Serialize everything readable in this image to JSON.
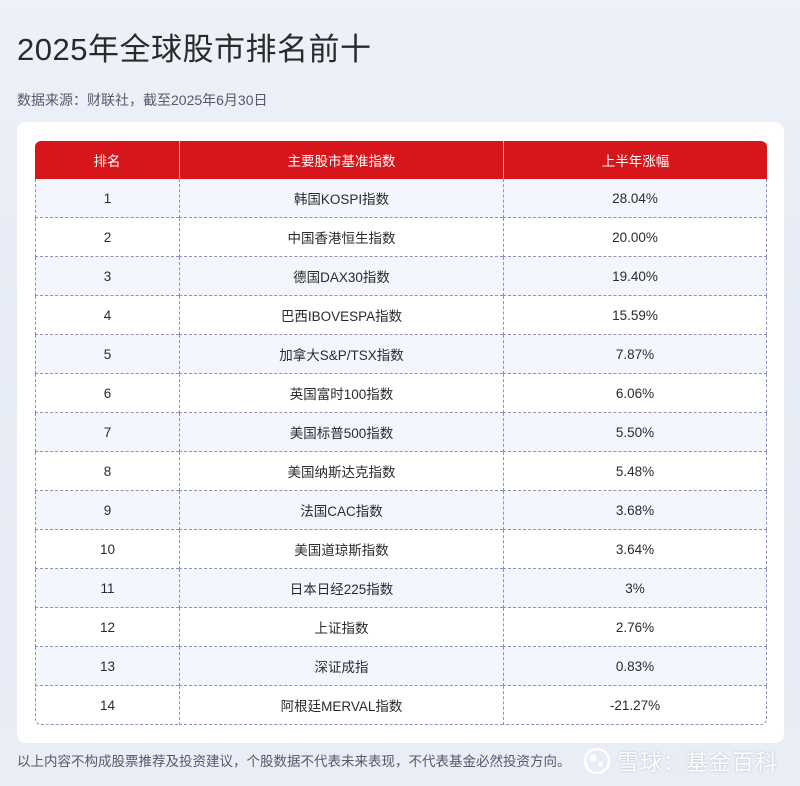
{
  "title": "2025年全球股市排名前十",
  "source": "数据来源：财联社，截至2025年6月30日",
  "table": {
    "headers": [
      "排名",
      "主要股市基准指数",
      "上半年涨幅"
    ],
    "rows": [
      {
        "rank": "1",
        "index": "韩国KOSPI指数",
        "change": "28.04%"
      },
      {
        "rank": "2",
        "index": "中国香港恒生指数",
        "change": "20.00%"
      },
      {
        "rank": "3",
        "index": "德国DAX30指数",
        "change": "19.40%"
      },
      {
        "rank": "4",
        "index": "巴西IBOVESPA指数",
        "change": "15.59%"
      },
      {
        "rank": "5",
        "index": "加拿大S&P/TSX指数",
        "change": "7.87%"
      },
      {
        "rank": "6",
        "index": "英国富时100指数",
        "change": "6.06%"
      },
      {
        "rank": "7",
        "index": "美国标普500指数",
        "change": "5.50%"
      },
      {
        "rank": "8",
        "index": "美国纳斯达克指数",
        "change": "5.48%"
      },
      {
        "rank": "9",
        "index": "法国CAC指数",
        "change": "3.68%"
      },
      {
        "rank": "10",
        "index": "美国道琼斯指数",
        "change": "3.64%"
      },
      {
        "rank": "11",
        "index": "日本日经225指数",
        "change": "3%"
      },
      {
        "rank": "12",
        "index": "上证指数",
        "change": "2.76%"
      },
      {
        "rank": "13",
        "index": "深证成指",
        "change": "0.83%"
      },
      {
        "rank": "14",
        "index": "阿根廷MERVAL指数",
        "change": "-21.27%"
      }
    ]
  },
  "disclaimer": "以上内容不构成股票推荐及投资建议，个股数据不代表未来表现，不代表基金必然投资方向。",
  "brand": {
    "icon": "snowball-logo-icon",
    "text": "雪球：基金百科"
  },
  "colors": {
    "header_red": "#d7161c",
    "row_tint": "#f3f6fd",
    "border_dash": "#8d93b8"
  }
}
